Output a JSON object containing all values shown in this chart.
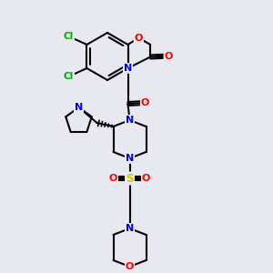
{
  "background_color": "#e8e8f0",
  "atom_colors": {
    "C": "#000000",
    "N": "#0000ee",
    "O": "#ff0000",
    "S": "#cccc00",
    "Cl": "#00aa00",
    "H": "#000000"
  },
  "bond_color": "#000000",
  "bond_width": 1.5,
  "figsize": [
    3.0,
    3.0
  ],
  "dpi": 100
}
